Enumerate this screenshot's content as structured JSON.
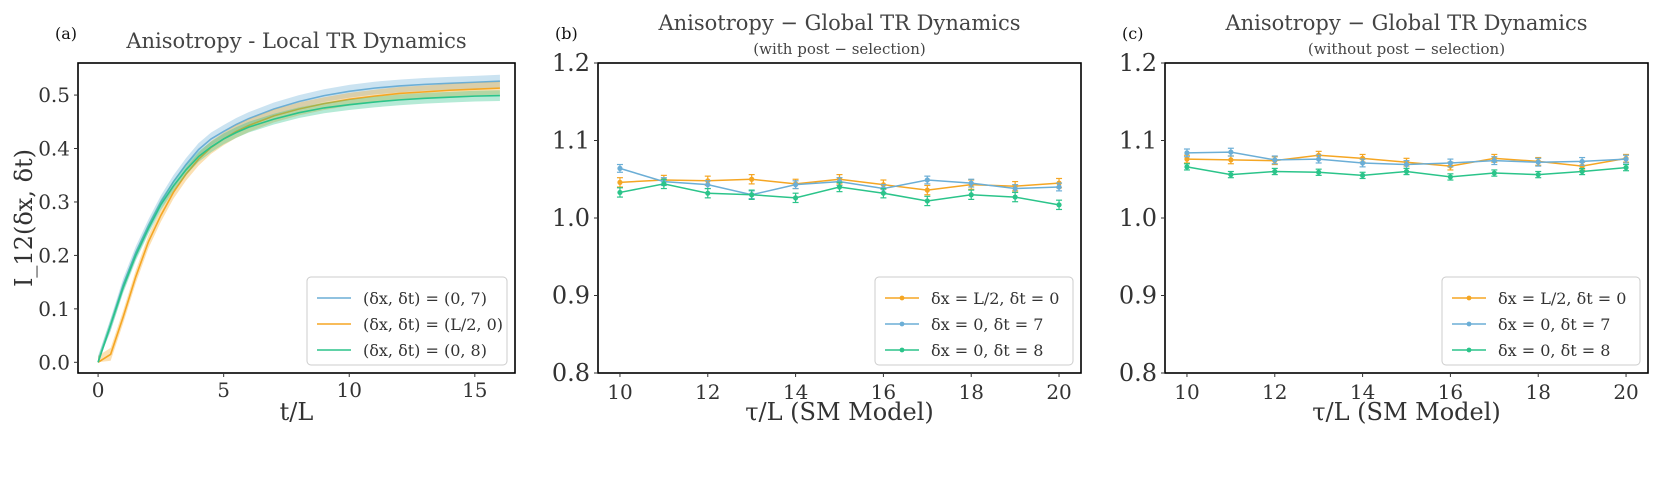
{
  "colors": {
    "blue": "#6baed6",
    "orange": "#f5a623",
    "green": "#2bc48a",
    "frame": "#000000",
    "legend_border": "#cccccc"
  },
  "chart_data": [
    {
      "panel": "(a)",
      "type": "line",
      "title": "Anisotropy - Local TR Dynamics",
      "xlabel": "t/L",
      "ylabel": "I_12(δx, δt)",
      "xlim": [
        -0.8,
        16.6
      ],
      "ylim": [
        -0.02,
        0.56
      ],
      "xticks": [
        0,
        5,
        10,
        15
      ],
      "yticks": [
        0.0,
        0.1,
        0.2,
        0.3,
        0.4,
        0.5
      ],
      "ytick_labels": [
        "0.0",
        "0.1",
        "0.2",
        "0.3",
        "0.4",
        "0.5"
      ],
      "grid": false,
      "legend_position": "lower-right",
      "x": [
        0,
        0.5,
        1,
        1.5,
        2,
        2.5,
        3,
        3.5,
        4,
        4.5,
        5,
        5.5,
        6,
        7,
        8,
        9,
        10,
        11,
        12,
        13,
        14,
        15,
        16
      ],
      "series": [
        {
          "name": "(δx, δt) = (0, 7)",
          "color_key": "blue",
          "band": 0.012,
          "values": [
            0.0,
            0.07,
            0.145,
            0.205,
            0.255,
            0.3,
            0.338,
            0.37,
            0.398,
            0.418,
            0.432,
            0.445,
            0.456,
            0.474,
            0.488,
            0.499,
            0.507,
            0.513,
            0.517,
            0.52,
            0.522,
            0.524,
            0.526
          ]
        },
        {
          "name": "(δx, δt) = (L/2, 0)",
          "color_key": "orange",
          "band": 0.012,
          "values": [
            0.0,
            0.015,
            0.085,
            0.16,
            0.225,
            0.275,
            0.318,
            0.352,
            0.38,
            0.402,
            0.418,
            0.432,
            0.443,
            0.461,
            0.474,
            0.484,
            0.492,
            0.498,
            0.503,
            0.506,
            0.509,
            0.511,
            0.513
          ]
        },
        {
          "name": "(δx, δt) = (0, 8)",
          "color_key": "green",
          "band": 0.01,
          "values": [
            0.0,
            0.07,
            0.14,
            0.2,
            0.25,
            0.295,
            0.33,
            0.36,
            0.385,
            0.403,
            0.418,
            0.43,
            0.44,
            0.455,
            0.467,
            0.476,
            0.482,
            0.487,
            0.491,
            0.494,
            0.496,
            0.498,
            0.499
          ]
        }
      ]
    },
    {
      "panel": "(b)",
      "type": "line",
      "title": "Anisotropy  −  Global TR Dynamics",
      "subtitle": "(with post − selection)",
      "xlabel": "τ/L (SM  Model)",
      "ylabel": "",
      "xlim": [
        9.5,
        20.5
      ],
      "ylim": [
        0.8,
        1.2
      ],
      "xticks": [
        10,
        12,
        14,
        16,
        18,
        20
      ],
      "yticks": [
        0.8,
        0.9,
        1.0,
        1.1,
        1.2
      ],
      "ytick_labels": [
        "0.8",
        "0.9",
        "1.0",
        "1.1",
        "1.2"
      ],
      "grid": false,
      "legend_position": "lower-right",
      "x": [
        10,
        11,
        12,
        13,
        14,
        15,
        16,
        17,
        18,
        19,
        20
      ],
      "series": [
        {
          "name": "δx = L/2, δt = 0",
          "color_key": "orange",
          "values": [
            1.046,
            1.049,
            1.048,
            1.05,
            1.044,
            1.05,
            1.043,
            1.036,
            1.043,
            1.041,
            1.045
          ],
          "errors": [
            0.006,
            0.006,
            0.006,
            0.006,
            0.006,
            0.006,
            0.006,
            0.006,
            0.006,
            0.006,
            0.006
          ]
        },
        {
          "name": "δx = 0, δt = 7",
          "color_key": "blue",
          "values": [
            1.064,
            1.047,
            1.043,
            1.03,
            1.043,
            1.047,
            1.038,
            1.049,
            1.045,
            1.038,
            1.04
          ],
          "errors": [
            0.005,
            0.005,
            0.005,
            0.005,
            0.005,
            0.005,
            0.005,
            0.005,
            0.005,
            0.005,
            0.005
          ]
        },
        {
          "name": "δx = 0, δt = 8",
          "color_key": "green",
          "values": [
            1.033,
            1.044,
            1.032,
            1.03,
            1.026,
            1.04,
            1.032,
            1.022,
            1.03,
            1.027,
            1.017
          ],
          "errors": [
            0.006,
            0.006,
            0.006,
            0.006,
            0.006,
            0.006,
            0.006,
            0.006,
            0.006,
            0.006,
            0.006
          ]
        }
      ]
    },
    {
      "panel": "(c)",
      "type": "line",
      "title": "Anisotropy  −  Global TR Dynamics",
      "subtitle": "(without post − selection)",
      "xlabel": "τ/L (SM  Model)",
      "ylabel": "",
      "xlim": [
        9.5,
        20.5
      ],
      "ylim": [
        0.8,
        1.2
      ],
      "xticks": [
        10,
        12,
        14,
        16,
        18,
        20
      ],
      "yticks": [
        0.8,
        0.9,
        1.0,
        1.1,
        1.2
      ],
      "ytick_labels": [
        "0.8",
        "0.9",
        "1.0",
        "1.1",
        "1.2"
      ],
      "grid": false,
      "legend_position": "lower-right",
      "x": [
        10,
        11,
        12,
        13,
        14,
        15,
        16,
        17,
        18,
        19,
        20
      ],
      "series": [
        {
          "name": "δx = L/2, δt = 0",
          "color_key": "orange",
          "values": [
            1.076,
            1.075,
            1.074,
            1.081,
            1.077,
            1.072,
            1.067,
            1.077,
            1.073,
            1.067,
            1.077
          ],
          "errors": [
            0.005,
            0.005,
            0.005,
            0.005,
            0.005,
            0.005,
            0.005,
            0.005,
            0.005,
            0.005,
            0.005
          ]
        },
        {
          "name": "δx = 0, δt = 7",
          "color_key": "blue",
          "values": [
            1.084,
            1.085,
            1.075,
            1.076,
            1.071,
            1.069,
            1.071,
            1.074,
            1.072,
            1.073,
            1.076
          ],
          "errors": [
            0.005,
            0.005,
            0.005,
            0.005,
            0.005,
            0.005,
            0.005,
            0.005,
            0.005,
            0.005,
            0.005
          ]
        },
        {
          "name": "δx = 0, δt = 8",
          "color_key": "green",
          "values": [
            1.066,
            1.056,
            1.06,
            1.059,
            1.055,
            1.06,
            1.053,
            1.058,
            1.056,
            1.06,
            1.065
          ],
          "errors": [
            0.004,
            0.004,
            0.004,
            0.004,
            0.004,
            0.004,
            0.004,
            0.004,
            0.004,
            0.004,
            0.004
          ]
        }
      ]
    }
  ]
}
